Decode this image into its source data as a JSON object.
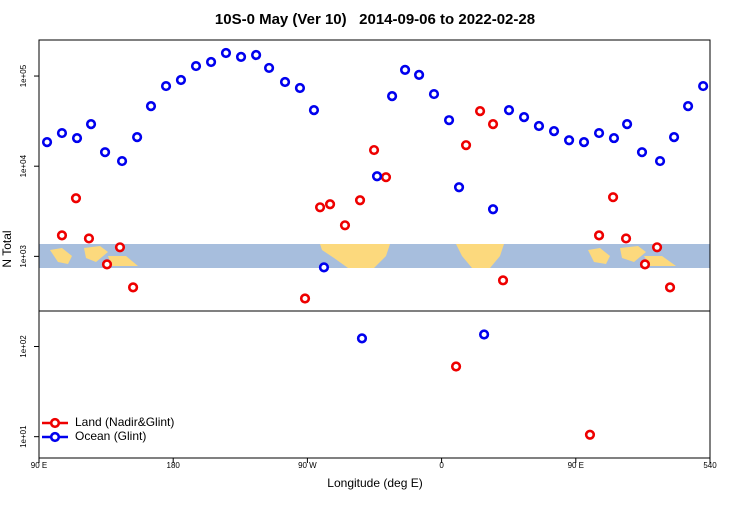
{
  "chart_data": {
    "type": "scatter",
    "title": "10S-0 May (Ver 10)   2014-09-06 to 2022-02-28",
    "xlabel": "Longitude (deg E)",
    "ylabel": "N Total",
    "log_y": true,
    "legend": "lower left",
    "xlim": [
      90,
      540
    ],
    "ylim": [
      5.8,
      251000
    ],
    "xticks": [
      {
        "value": 90,
        "label": "90 E"
      },
      180,
      {
        "value": 270,
        "label": "90 W"
      },
      {
        "value": 360,
        "label": "0"
      },
      {
        "value": 450,
        "label": "90 E"
      },
      540
    ],
    "yticks": [
      {
        "value": 10,
        "label": "1e+01"
      },
      {
        "value": 100,
        "label": "1e+02"
      },
      {
        "value": 1000,
        "label": "1e+03"
      },
      {
        "value": 10000,
        "label": "1e+04"
      },
      {
        "value": 100000,
        "label": "1e+05"
      }
    ],
    "series": [
      {
        "name": "Land (Nadir&Glint)",
        "color": "#ee0000",
        "x": [
          105.4,
          114.8,
          123.5,
          135.6,
          144.3,
          153.1,
          268.4,
          278.5,
          285.2,
          295.2,
          305.3,
          314.7,
          322.7,
          369.7,
          376.4,
          385.8,
          394.5,
          401.2,
          459.5,
          465.6,
          475.0,
          483.7,
          496.4,
          504.5,
          513.2
        ],
        "values": [
          1710,
          4410,
          1580,
          815,
          1260,
          453,
          341,
          3500,
          3780,
          2210,
          4190,
          15100,
          7550,
          60,
          17100,
          40800,
          29300,
          542,
          10.5,
          1710,
          4530,
          1580,
          815,
          1260,
          453
        ]
      },
      {
        "name": "Ocean (Glint)",
        "color": "#0000ee",
        "x": [
          95.4,
          105.4,
          115.5,
          124.9,
          134.3,
          145.7,
          155.8,
          165.1,
          175.2,
          185.2,
          195.3,
          205.4,
          215.4,
          225.5,
          235.6,
          244.3,
          255.0,
          265.0,
          274.4,
          281.1,
          306.6,
          316.7,
          326.8,
          335.5,
          344.9,
          354.9,
          365.0,
          371.7,
          388.5,
          394.5,
          405.2,
          415.3,
          425.3,
          435.4,
          445.5,
          455.5,
          465.6,
          475.6,
          484.4,
          494.4,
          506.5,
          515.9,
          525.3,
          535.4
        ],
        "values": [
          18500,
          23300,
          20500,
          29300,
          14300,
          11400,
          21000,
          46400,
          77400,
          90300,
          129000,
          143000,
          180000,
          163000,
          171000,
          123000,
          85800,
          73600,
          41900,
          755,
          123,
          7740,
          59900,
          117000,
          103000,
          63100,
          32400,
          5840,
          136,
          3330,
          41900,
          35000,
          27900,
          24500,
          19400,
          18500,
          23300,
          20500,
          29300,
          14300,
          11400,
          21000,
          46400,
          77400
        ]
      }
    ]
  }
}
